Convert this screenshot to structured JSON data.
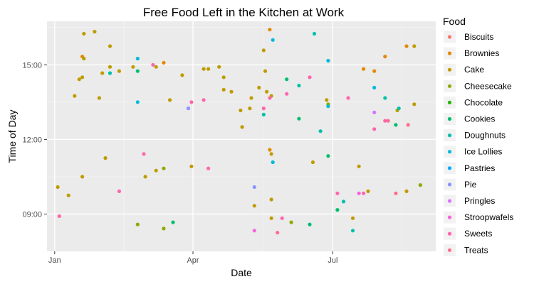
{
  "chart_data": {
    "type": "scatter",
    "title": "Free Food Left in the Kitchen at Work",
    "xlabel": "Date",
    "ylabel": "Time of Day",
    "x_axis": {
      "type": "date",
      "range": [
        "2016-12-27",
        "2017-09-06"
      ],
      "ticks": [
        "2017-01-01",
        "2017-04-01",
        "2017-07-01"
      ],
      "tick_labels": [
        "Jan",
        "Apr",
        "Jul"
      ]
    },
    "y_axis": {
      "type": "time",
      "range": [
        "07:30",
        "16:45"
      ],
      "ticks": [
        "09:00",
        "12:00",
        "15:00"
      ]
    },
    "grid": true,
    "legend": {
      "title": "Food",
      "placement": "right"
    },
    "series": [
      {
        "name": "Biscuits",
        "color": "#F8766D",
        "points": []
      },
      {
        "name": "Brownies",
        "color": "#E18A00",
        "points": [
          [
            "2017-01-19",
            "15:20"
          ],
          [
            "2017-03-13",
            "15:05"
          ],
          [
            "2017-05-21",
            "11:35"
          ],
          [
            "2017-05-21",
            "16:25"
          ],
          [
            "2017-07-21",
            "14:50"
          ],
          [
            "2017-07-28",
            "14:45"
          ],
          [
            "2017-08-04",
            "15:20"
          ],
          [
            "2017-08-18",
            "15:45"
          ]
        ]
      },
      {
        "name": "Cake",
        "color": "#BE9C00",
        "points": [
          [
            "2017-01-03",
            "10:05"
          ],
          [
            "2017-01-10",
            "09:45"
          ],
          [
            "2017-01-14",
            "13:45"
          ],
          [
            "2017-01-17",
            "14:25"
          ],
          [
            "2017-01-19",
            "10:30"
          ],
          [
            "2017-01-19",
            "14:30"
          ],
          [
            "2017-01-20",
            "15:15"
          ],
          [
            "2017-01-20",
            "16:15"
          ],
          [
            "2017-01-27",
            "16:20"
          ],
          [
            "2017-01-30",
            "13:40"
          ],
          [
            "2017-02-01",
            "14:40"
          ],
          [
            "2017-02-03",
            "11:15"
          ],
          [
            "2017-02-06",
            "15:45"
          ],
          [
            "2017-02-06",
            "14:55"
          ],
          [
            "2017-02-12",
            "14:45"
          ],
          [
            "2017-02-21",
            "14:55"
          ],
          [
            "2017-03-01",
            "10:30"
          ],
          [
            "2017-03-08",
            "14:55"
          ],
          [
            "2017-03-08",
            "10:45"
          ],
          [
            "2017-03-17",
            "13:35"
          ],
          [
            "2017-03-25",
            "14:35"
          ],
          [
            "2017-03-31",
            "10:55"
          ],
          [
            "2017-04-08",
            "14:50"
          ],
          [
            "2017-04-11",
            "14:50"
          ],
          [
            "2017-04-18",
            "14:55"
          ],
          [
            "2017-04-21",
            "14:30"
          ],
          [
            "2017-04-21",
            "14:00"
          ],
          [
            "2017-04-26",
            "13:55"
          ],
          [
            "2017-05-02",
            "13:10"
          ],
          [
            "2017-05-03",
            "12:30"
          ],
          [
            "2017-05-08",
            "13:15"
          ],
          [
            "2017-05-09",
            "13:40"
          ],
          [
            "2017-05-11",
            "09:20"
          ],
          [
            "2017-05-14",
            "14:05"
          ],
          [
            "2017-05-17",
            "15:35"
          ],
          [
            "2017-05-18",
            "14:45"
          ],
          [
            "2017-05-19",
            "13:55"
          ],
          [
            "2017-05-22",
            "13:45"
          ],
          [
            "2017-05-22",
            "11:25"
          ],
          [
            "2017-05-22",
            "09:35"
          ],
          [
            "2017-05-22",
            "08:50"
          ],
          [
            "2017-06-18",
            "11:05"
          ],
          [
            "2017-06-27",
            "13:35"
          ],
          [
            "2017-07-14",
            "08:50"
          ],
          [
            "2017-07-18",
            "10:55"
          ],
          [
            "2017-07-24",
            "09:55"
          ],
          [
            "2017-08-12",
            "13:10"
          ],
          [
            "2017-08-18",
            "09:55"
          ],
          [
            "2017-08-23",
            "15:45"
          ],
          [
            "2017-08-23",
            "13:25"
          ]
        ]
      },
      {
        "name": "Cheesecake",
        "color": "#8CAB00",
        "points": [
          [
            "2017-02-24",
            "08:35"
          ],
          [
            "2017-03-13",
            "08:25"
          ],
          [
            "2017-03-13",
            "10:50"
          ],
          [
            "2017-06-04",
            "08:40"
          ],
          [
            "2017-06-28",
            "13:25"
          ],
          [
            "2017-08-27",
            "10:10"
          ]
        ]
      },
      {
        "name": "Chocolate",
        "color": "#24B700",
        "points": []
      },
      {
        "name": "Cookies",
        "color": "#00BE70",
        "points": [
          [
            "2017-02-24",
            "14:45"
          ],
          [
            "2017-03-19",
            "08:40"
          ],
          [
            "2017-06-01",
            "14:25"
          ],
          [
            "2017-06-09",
            "12:50"
          ],
          [
            "2017-06-16",
            "08:35"
          ],
          [
            "2017-06-28",
            "11:20"
          ],
          [
            "2017-07-04",
            "09:10"
          ],
          [
            "2017-08-11",
            "12:35"
          ]
        ]
      },
      {
        "name": "Doughnuts",
        "color": "#00C1AB",
        "points": [
          [
            "2017-02-06",
            "14:40"
          ],
          [
            "2017-05-17",
            "13:00"
          ],
          [
            "2017-06-09",
            "14:10"
          ],
          [
            "2017-06-19",
            "16:15"
          ],
          [
            "2017-06-23",
            "12:20"
          ],
          [
            "2017-07-08",
            "09:30"
          ],
          [
            "2017-07-14",
            "08:20"
          ],
          [
            "2017-08-04",
            "13:40"
          ],
          [
            "2017-08-13",
            "13:15"
          ]
        ]
      },
      {
        "name": "Ice Lollies",
        "color": "#00BBDA",
        "points": [
          [
            "2017-02-24",
            "15:15"
          ],
          [
            "2017-02-24",
            "13:30"
          ],
          [
            "2017-05-23",
            "11:05"
          ],
          [
            "2017-05-23",
            "16:00"
          ],
          [
            "2017-06-28",
            "15:10"
          ],
          [
            "2017-06-28",
            "13:20"
          ],
          [
            "2017-07-28",
            "14:05"
          ]
        ]
      },
      {
        "name": "Pastries",
        "color": "#00ACFC",
        "points": []
      },
      {
        "name": "Pie",
        "color": "#8B93FF",
        "points": [
          [
            "2017-03-29",
            "13:15"
          ],
          [
            "2017-05-11",
            "10:05"
          ]
        ]
      },
      {
        "name": "Pringles",
        "color": "#D575FE",
        "points": [
          [
            "2017-07-28",
            "13:05"
          ]
        ]
      },
      {
        "name": "Stroopwafels",
        "color": "#F962DD",
        "points": [
          [
            "2017-05-11",
            "08:20"
          ],
          [
            "2017-07-18",
            "09:50"
          ]
        ]
      },
      {
        "name": "Sweets",
        "color": "#FF65AC",
        "points": [
          [
            "2017-01-04",
            "08:55"
          ],
          [
            "2017-02-12",
            "09:55"
          ],
          [
            "2017-02-28",
            "11:25"
          ],
          [
            "2017-03-06",
            "15:00"
          ],
          [
            "2017-03-31",
            "13:30"
          ],
          [
            "2017-04-08",
            "13:35"
          ],
          [
            "2017-04-11",
            "10:50"
          ],
          [
            "2017-05-17",
            "13:15"
          ],
          [
            "2017-05-21",
            "13:40"
          ],
          [
            "2017-05-29",
            "08:50"
          ],
          [
            "2017-06-01",
            "13:50"
          ],
          [
            "2017-06-16",
            "14:30"
          ],
          [
            "2017-07-04",
            "09:50"
          ],
          [
            "2017-07-11",
            "13:40"
          ],
          [
            "2017-07-21",
            "09:50"
          ],
          [
            "2017-07-28",
            "12:25"
          ],
          [
            "2017-08-04",
            "12:45"
          ]
        ]
      },
      {
        "name": "Treats",
        "color": "#FF6C91",
        "points": [
          [
            "2017-05-26",
            "08:15"
          ],
          [
            "2017-08-06",
            "12:45"
          ],
          [
            "2017-08-11",
            "09:50"
          ],
          [
            "2017-08-19",
            "12:35"
          ]
        ]
      }
    ]
  }
}
